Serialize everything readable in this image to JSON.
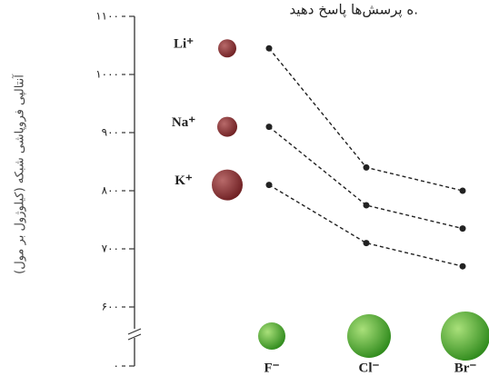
{
  "chart_data": {
    "type": "line",
    "title": "ه پرسش‌ها پاسخ دهید.",
    "y_label": "آنتالپی فروپاشی شبکه (کیلوژول بر مول)",
    "categories": [
      "F⁻",
      "Cl⁻",
      "Br⁻"
    ],
    "series": [
      {
        "name": "Li⁺",
        "color": "#222222",
        "values": [
          1045,
          840,
          800
        ]
      },
      {
        "name": "Na⁺",
        "color": "#222222",
        "values": [
          910,
          775,
          735
        ]
      },
      {
        "name": "K⁺",
        "color": "#222222",
        "values": [
          810,
          710,
          670
        ]
      }
    ],
    "ylim": [
      600,
      1100
    ],
    "yticks": [
      {
        "value": 0,
        "label": "۰"
      },
      {
        "value": 600,
        "label": "۶۰۰"
      },
      {
        "value": 700,
        "label": "۷۰۰"
      },
      {
        "value": 800,
        "label": "۸۰۰"
      },
      {
        "value": 900,
        "label": "۹۰۰"
      },
      {
        "value": 1000,
        "label": "۱۰۰۰"
      },
      {
        "value": 1100,
        "label": "۱۱۰۰"
      }
    ],
    "axis_break": true
  }
}
